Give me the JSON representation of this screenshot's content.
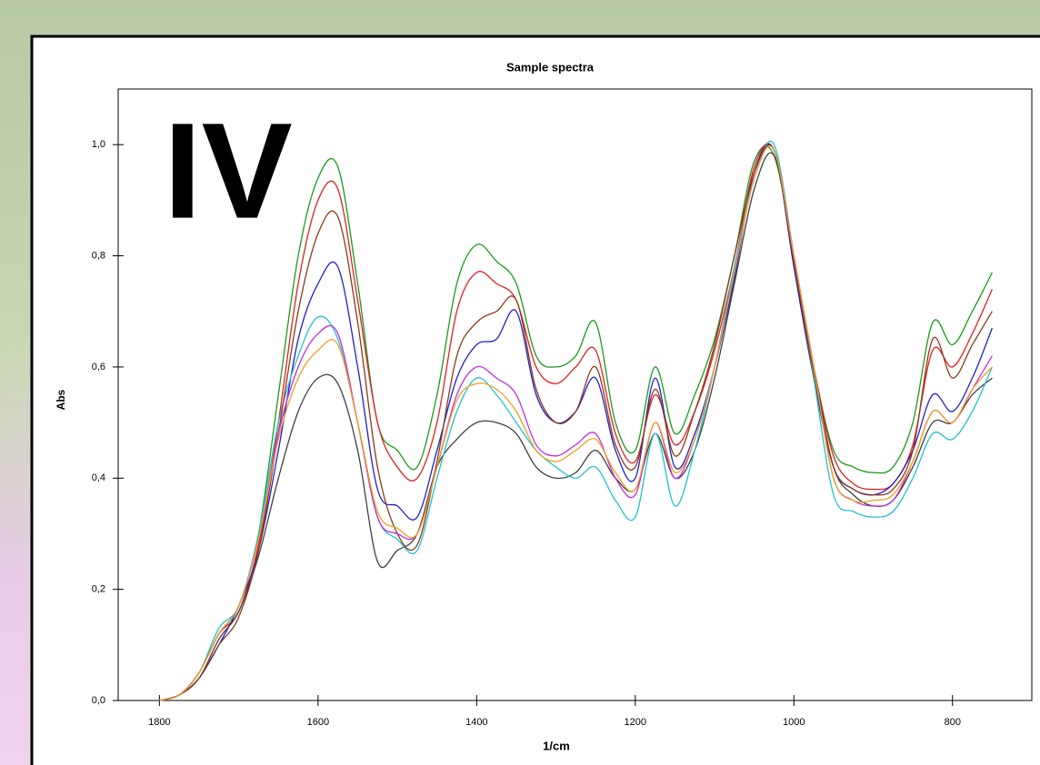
{
  "chart_data": {
    "type": "line",
    "title": "Sample spectra",
    "annotation": "IV",
    "x_label": "1/cm",
    "y_label": "Abs",
    "xlim": [
      1852,
      700
    ],
    "ylim": [
      0,
      1.1
    ],
    "xticks": [
      1800,
      1600,
      1400,
      1200,
      1000,
      800
    ],
    "yticks": [
      {
        "value": 0,
        "label": "0,0"
      },
      {
        "value": 0.2,
        "label": "0,2"
      },
      {
        "value": 0.4,
        "label": "0,4"
      },
      {
        "value": 0.6,
        "label": "0,6"
      },
      {
        "value": 0.8,
        "label": "0,8"
      },
      {
        "value": 1,
        "label": "1,0"
      }
    ],
    "x": [
      1800,
      1775,
      1750,
      1725,
      1700,
      1675,
      1650,
      1625,
      1600,
      1575,
      1550,
      1525,
      1500,
      1475,
      1450,
      1425,
      1400,
      1375,
      1350,
      1325,
      1300,
      1275,
      1250,
      1225,
      1200,
      1175,
      1150,
      1125,
      1100,
      1075,
      1050,
      1025,
      1000,
      975,
      950,
      925,
      900,
      875,
      850,
      825,
      800,
      775,
      750
    ],
    "series": [
      {
        "color": "#1a9a1a",
        "values": [
          0,
          0.01,
          0.05,
          0.12,
          0.17,
          0.3,
          0.55,
          0.8,
          0.94,
          0.96,
          0.75,
          0.5,
          0.45,
          0.42,
          0.55,
          0.75,
          0.82,
          0.79,
          0.75,
          0.62,
          0.6,
          0.62,
          0.68,
          0.5,
          0.45,
          0.6,
          0.48,
          0.55,
          0.65,
          0.8,
          0.97,
          0.98,
          0.8,
          0.6,
          0.45,
          0.42,
          0.41,
          0.42,
          0.5,
          0.68,
          0.64,
          0.7,
          0.77
        ]
      },
      {
        "color": "#e02020",
        "values": [
          0,
          0.01,
          0.05,
          0.12,
          0.16,
          0.28,
          0.5,
          0.75,
          0.9,
          0.92,
          0.72,
          0.5,
          0.42,
          0.4,
          0.5,
          0.7,
          0.77,
          0.75,
          0.72,
          0.6,
          0.57,
          0.6,
          0.63,
          0.48,
          0.43,
          0.55,
          0.46,
          0.52,
          0.63,
          0.78,
          0.96,
          0.99,
          0.8,
          0.6,
          0.44,
          0.39,
          0.38,
          0.39,
          0.46,
          0.63,
          0.6,
          0.66,
          0.74
        ]
      },
      {
        "color": "#2020d0",
        "values": [
          0,
          0.01,
          0.04,
          0.1,
          0.17,
          0.27,
          0.45,
          0.65,
          0.75,
          0.78,
          0.6,
          0.38,
          0.35,
          0.33,
          0.45,
          0.58,
          0.64,
          0.65,
          0.7,
          0.55,
          0.5,
          0.52,
          0.58,
          0.45,
          0.4,
          0.58,
          0.42,
          0.48,
          0.6,
          0.76,
          0.95,
          0.99,
          0.78,
          0.58,
          0.42,
          0.38,
          0.37,
          0.39,
          0.45,
          0.55,
          0.52,
          0.58,
          0.67
        ]
      },
      {
        "color": "#404040",
        "values": [
          0,
          0.01,
          0.04,
          0.11,
          0.16,
          0.26,
          0.4,
          0.52,
          0.58,
          0.57,
          0.45,
          0.25,
          0.27,
          0.3,
          0.42,
          0.47,
          0.5,
          0.5,
          0.48,
          0.42,
          0.4,
          0.41,
          0.45,
          0.4,
          0.38,
          0.48,
          0.4,
          0.45,
          0.58,
          0.75,
          0.92,
          0.98,
          0.8,
          0.6,
          0.42,
          0.37,
          0.35,
          0.36,
          0.42,
          0.5,
          0.5,
          0.55,
          0.58
        ]
      },
      {
        "color": "#20c0d0",
        "values": [
          0,
          0.01,
          0.05,
          0.13,
          0.17,
          0.3,
          0.5,
          0.62,
          0.69,
          0.65,
          0.5,
          0.33,
          0.29,
          0.27,
          0.4,
          0.52,
          0.58,
          0.55,
          0.5,
          0.45,
          0.42,
          0.4,
          0.42,
          0.36,
          0.33,
          0.48,
          0.35,
          0.45,
          0.6,
          0.78,
          0.94,
          1.0,
          0.8,
          0.58,
          0.37,
          0.34,
          0.33,
          0.34,
          0.4,
          0.48,
          0.47,
          0.52,
          0.6
        ]
      },
      {
        "color": "#8b3a1a",
        "values": [
          0,
          0.01,
          0.04,
          0.1,
          0.15,
          0.27,
          0.48,
          0.7,
          0.84,
          0.87,
          0.68,
          0.42,
          0.3,
          0.28,
          0.43,
          0.62,
          0.68,
          0.7,
          0.72,
          0.56,
          0.5,
          0.52,
          0.6,
          0.46,
          0.42,
          0.56,
          0.44,
          0.52,
          0.64,
          0.8,
          0.95,
          0.99,
          0.79,
          0.59,
          0.42,
          0.38,
          0.37,
          0.38,
          0.45,
          0.65,
          0.58,
          0.64,
          0.7
        ]
      },
      {
        "color": "#c030e0",
        "values": [
          0,
          0.01,
          0.05,
          0.12,
          0.17,
          0.29,
          0.48,
          0.6,
          0.66,
          0.66,
          0.5,
          0.33,
          0.3,
          0.3,
          0.42,
          0.55,
          0.6,
          0.58,
          0.55,
          0.46,
          0.44,
          0.46,
          0.48,
          0.4,
          0.37,
          0.5,
          0.4,
          0.47,
          0.6,
          0.77,
          0.94,
          0.99,
          0.8,
          0.6,
          0.4,
          0.36,
          0.35,
          0.36,
          0.43,
          0.52,
          0.5,
          0.56,
          0.62
        ]
      },
      {
        "color": "#f0a020",
        "values": [
          0,
          0.01,
          0.05,
          0.12,
          0.17,
          0.29,
          0.47,
          0.58,
          0.63,
          0.64,
          0.5,
          0.34,
          0.31,
          0.3,
          0.42,
          0.54,
          0.57,
          0.56,
          0.52,
          0.45,
          0.43,
          0.45,
          0.47,
          0.41,
          0.38,
          0.5,
          0.41,
          0.47,
          0.6,
          0.77,
          0.94,
          0.99,
          0.8,
          0.6,
          0.4,
          0.36,
          0.36,
          0.37,
          0.43,
          0.52,
          0.5,
          0.56,
          0.6
        ]
      }
    ]
  }
}
